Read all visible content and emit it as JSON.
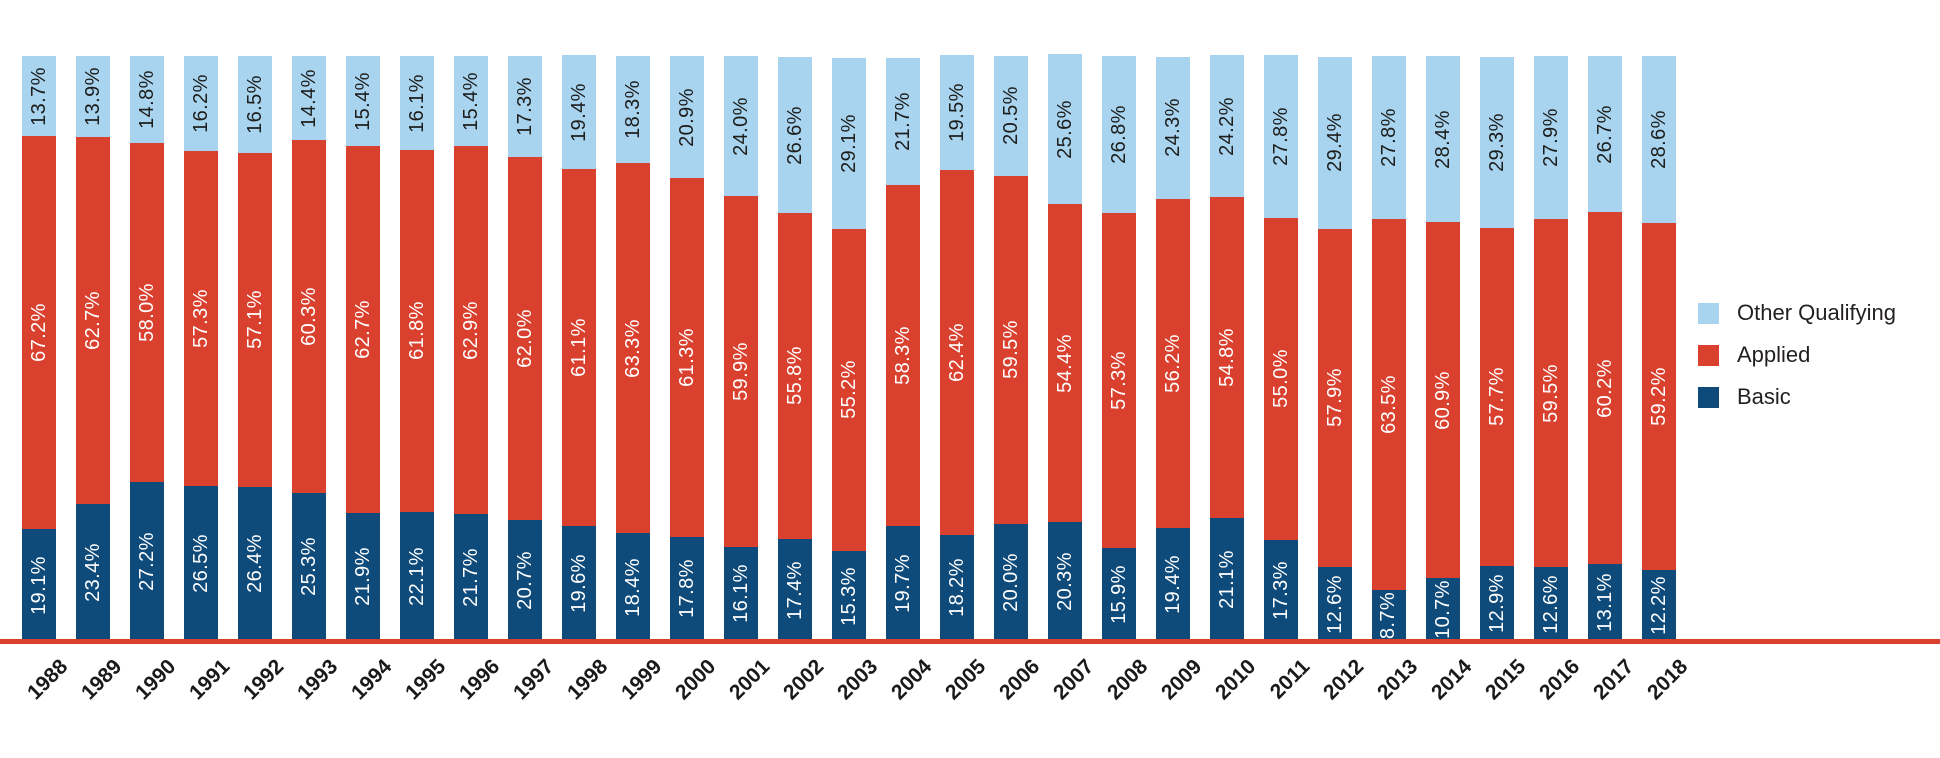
{
  "chart_data": {
    "type": "bar",
    "subtype": "stacked-100-percent",
    "title": "",
    "xlabel": "",
    "ylabel": "",
    "ylim": [
      0,
      100
    ],
    "grid": false,
    "legend_position": "right",
    "value_suffix": "%",
    "categories": [
      "1988",
      "1989",
      "1990",
      "1991",
      "1992",
      "1993",
      "1994",
      "1995",
      "1996",
      "1997",
      "1998",
      "1999",
      "2000",
      "2001",
      "2002",
      "2003",
      "2004",
      "2005",
      "2006",
      "2007",
      "2008",
      "2009",
      "2010",
      "2011",
      "2012",
      "2013",
      "2014",
      "2015",
      "2016",
      "2017",
      "2018"
    ],
    "stack_order_bottom_to_top": [
      "Basic",
      "Applied",
      "Other Qualifying"
    ],
    "series": [
      {
        "name": "Basic",
        "color": "#0e4a7a",
        "label_color": "#ffffff",
        "values": [
          19.1,
          23.4,
          27.2,
          26.5,
          26.4,
          25.3,
          21.9,
          22.1,
          21.7,
          20.7,
          19.6,
          18.4,
          17.8,
          16.1,
          17.4,
          15.3,
          19.7,
          18.2,
          20.0,
          20.3,
          15.9,
          19.4,
          21.1,
          17.3,
          12.6,
          8.7,
          10.7,
          12.9,
          12.6,
          13.1,
          12.2
        ]
      },
      {
        "name": "Applied",
        "color": "#d9402e",
        "label_color": "#ffffff",
        "values": [
          67.2,
          62.7,
          58.0,
          57.3,
          57.1,
          60.3,
          62.7,
          61.8,
          62.9,
          62.0,
          61.1,
          63.3,
          61.3,
          59.9,
          55.8,
          55.2,
          58.3,
          62.4,
          59.5,
          54.4,
          57.3,
          56.2,
          54.8,
          55.0,
          57.9,
          63.5,
          60.9,
          57.7,
          59.5,
          60.2,
          59.2
        ]
      },
      {
        "name": "Other Qualifying",
        "color": "#a8d4ef",
        "label_color": "#1d1d1b",
        "values": [
          13.7,
          13.9,
          14.8,
          16.2,
          16.5,
          14.4,
          15.4,
          16.1,
          15.4,
          17.3,
          19.4,
          18.3,
          20.9,
          24.0,
          26.6,
          29.1,
          21.7,
          19.5,
          20.5,
          25.6,
          26.8,
          24.3,
          24.2,
          27.8,
          29.4,
          27.8,
          28.4,
          29.3,
          27.9,
          26.7,
          28.6
        ]
      }
    ],
    "legend": [
      "Other Qualifying",
      "Applied",
      "Basic"
    ],
    "axis": {
      "baseline_color": "#d9402e",
      "tick_label_color": "#1a1a1a"
    }
  }
}
